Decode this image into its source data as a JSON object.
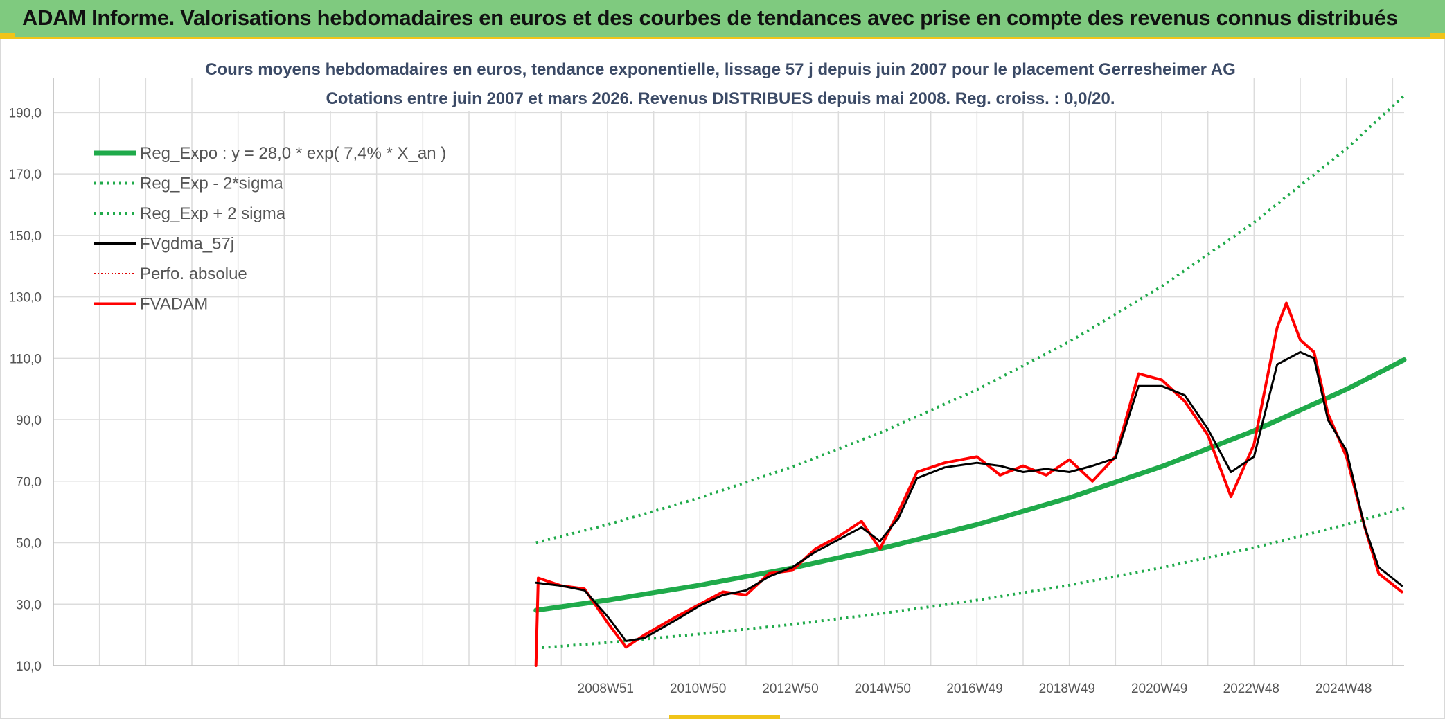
{
  "header": {
    "title": "ADAM Informe. Valorisations hebdomadaires en euros et des courbes de tendances avec prise en compte des revenus connus distribués"
  },
  "colors": {
    "header_bg": "#7fca7f",
    "accent_yellow": "#f0c419",
    "reg_expo": "#1faa4a",
    "sigma": "#1faa4a",
    "fvgdma": "#000000",
    "perfo": "#e00000",
    "fvadam": "#ff0000"
  },
  "chart_data": {
    "type": "line",
    "title_line1": "Cours moyens hebdomadaires en euros, tendance exponentielle, lissage 57 j depuis juin 2007 pour le placement Gerresheimer AG",
    "title_line2": "Cotations entre juin 2007 et mars 2026. Revenus DISTRIBUES depuis mai 2008. Reg. croiss. : 0,0/20.",
    "ylim": [
      10,
      200
    ],
    "y_ticks": [
      "10,0",
      "30,0",
      "50,0",
      "70,0",
      "90,0",
      "110,0",
      "130,0",
      "150,0",
      "170,0",
      "190,0"
    ],
    "y_tick_values": [
      10,
      30,
      50,
      70,
      90,
      110,
      130,
      150,
      170,
      190
    ],
    "x_ticks": [
      "2008W51",
      "2010W50",
      "2012W50",
      "2014W50",
      "2016W49",
      "2018W49",
      "2020W49",
      "2022W48",
      "2024W48"
    ],
    "x_tick_years": [
      2008.96,
      2010.96,
      2012.96,
      2014.96,
      2016.95,
      2018.95,
      2020.95,
      2022.94,
      2024.94
    ],
    "xlim_years": [
      1997.0,
      2026.25
    ],
    "grid": true,
    "legend_position": "top-left",
    "legend": [
      {
        "label": "Reg_Expo : y = 28,0 * exp( 7,4% *  X_an )",
        "style": "thick-solid",
        "color": "#1faa4a"
      },
      {
        "label": "Reg_Exp - 2*sigma",
        "style": "dotted",
        "color": "#1faa4a"
      },
      {
        "label": "Reg_Exp + 2 sigma",
        "style": "dotted",
        "color": "#1faa4a"
      },
      {
        "label": "FVgdma_57j",
        "style": "solid",
        "color": "#000000"
      },
      {
        "label": "Perfo. absolue",
        "style": "dotted",
        "color": "#e00000"
      },
      {
        "label": "FVADAM",
        "style": "thick-solid",
        "color": "#ff0000"
      }
    ],
    "series": [
      {
        "name": "Reg_Expo : y = 28,0 * exp( 7,4% *  X_an )",
        "x": [
          2007.45,
          2009.0,
          2011.0,
          2013.0,
          2015.0,
          2017.0,
          2019.0,
          2021.0,
          2023.0,
          2025.0,
          2026.25
        ],
        "values": [
          28.0,
          31.3,
          36.2,
          41.8,
          48.4,
          55.9,
          64.6,
          74.8,
          86.4,
          99.9,
          109.5
        ]
      },
      {
        "name": "Reg_Exp - 2*sigma",
        "x": [
          2007.45,
          2009.0,
          2011.0,
          2013.0,
          2015.0,
          2017.0,
          2019.0,
          2021.0,
          2023.0,
          2025.0,
          2026.25
        ],
        "values": [
          15.7,
          17.5,
          20.3,
          23.4,
          27.1,
          31.3,
          36.2,
          41.9,
          48.4,
          55.9,
          61.3
        ]
      },
      {
        "name": "Reg_Exp + 2 sigma",
        "x": [
          2007.45,
          2009.0,
          2011.0,
          2013.0,
          2015.0,
          2017.0,
          2019.0,
          2021.0,
          2023.0,
          2025.0,
          2026.25
        ],
        "values": [
          50.0,
          55.9,
          64.6,
          74.7,
          86.4,
          99.8,
          115.4,
          133.4,
          154.2,
          178.2,
          195.5
        ]
      },
      {
        "name": "FVgdma_57j",
        "x": [
          2007.45,
          2008.0,
          2008.5,
          2009.0,
          2009.4,
          2009.8,
          2010.5,
          2011.0,
          2011.5,
          2012.0,
          2012.5,
          2013.0,
          2013.5,
          2014.0,
          2014.5,
          2014.9,
          2015.3,
          2015.7,
          2016.3,
          2017.0,
          2017.5,
          2018.0,
          2018.5,
          2019.0,
          2019.5,
          2020.0,
          2020.5,
          2021.0,
          2021.5,
          2022.0,
          2022.5,
          2023.0,
          2023.5,
          2024.0,
          2024.3,
          2024.6,
          2025.0,
          2025.4,
          2025.7,
          2026.2
        ],
        "values": [
          37.0,
          36.0,
          34.5,
          26.0,
          18.0,
          19.0,
          25.0,
          29.5,
          33.0,
          34.5,
          39.0,
          42.0,
          47.0,
          51.0,
          55.0,
          50.5,
          58.0,
          71.0,
          74.5,
          76.0,
          75.0,
          73.0,
          74.0,
          73.0,
          75.0,
          77.5,
          101.0,
          101.0,
          98.0,
          87.0,
          73.0,
          78.0,
          108.0,
          112.0,
          110.0,
          90.0,
          80.0,
          55.0,
          42.0,
          36.0
        ]
      },
      {
        "name": "FVADAM",
        "x": [
          2007.45,
          2007.5,
          2008.0,
          2008.5,
          2009.0,
          2009.4,
          2009.8,
          2010.5,
          2011.0,
          2011.5,
          2012.0,
          2012.5,
          2013.0,
          2013.5,
          2014.0,
          2014.5,
          2014.9,
          2015.3,
          2015.7,
          2016.3,
          2017.0,
          2017.5,
          2018.0,
          2018.5,
          2019.0,
          2019.5,
          2020.0,
          2020.5,
          2021.0,
          2021.5,
          2022.0,
          2022.5,
          2023.0,
          2023.5,
          2023.7,
          2024.0,
          2024.3,
          2024.6,
          2025.0,
          2025.4,
          2025.7,
          2026.2
        ],
        "values": [
          10.0,
          38.5,
          36.0,
          35.0,
          24.0,
          16.0,
          20.0,
          26.0,
          30.0,
          34.0,
          33.0,
          40.0,
          41.0,
          48.0,
          52.0,
          57.0,
          48.0,
          60.0,
          73.0,
          76.0,
          78.0,
          72.0,
          75.0,
          72.0,
          77.0,
          70.0,
          78.0,
          105.0,
          103.0,
          96.0,
          85.0,
          65.0,
          82.0,
          120.0,
          128.0,
          116.0,
          112.0,
          92.0,
          78.0,
          55.0,
          40.0,
          34.0
        ]
      }
    ]
  }
}
